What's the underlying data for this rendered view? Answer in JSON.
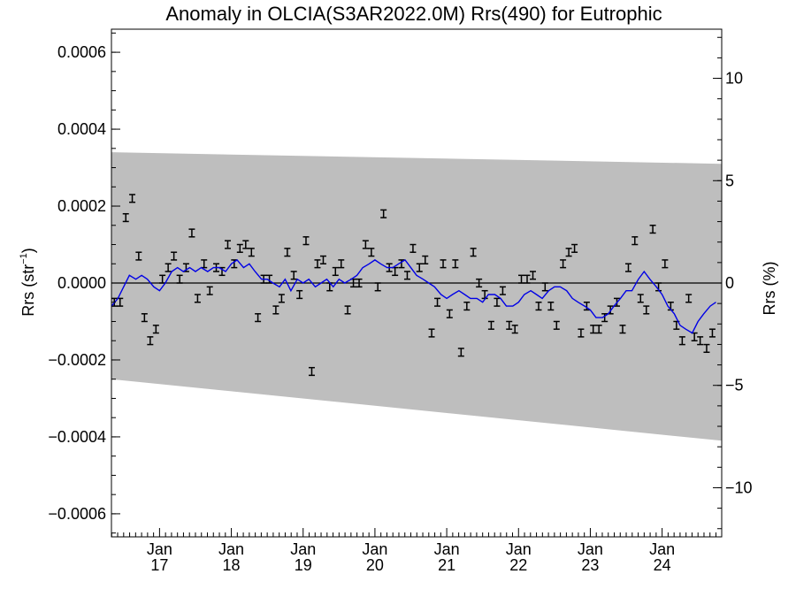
{
  "chart_data": {
    "type": "scatter",
    "title": "Anomaly in OLCIA(S3AR2022.0M) Rrs(490) for Eutrophic",
    "ylabel_left": {
      "base": "Rrs (str",
      "sup": "−1",
      "end": ")"
    },
    "ylabel_right": "Rrs (%)",
    "xlim": [
      2016.33,
      2024.83
    ],
    "ylim_left": [
      -0.00066,
      0.00066
    ],
    "ylim_right": [
      -12.4,
      12.4
    ],
    "grid": false,
    "legend": "none",
    "x_ticks": [
      {
        "x": 2017.0,
        "month": "Jan",
        "year": "17"
      },
      {
        "x": 2018.0,
        "month": "Jan",
        "year": "18"
      },
      {
        "x": 2019.0,
        "month": "Jan",
        "year": "19"
      },
      {
        "x": 2020.0,
        "month": "Jan",
        "year": "20"
      },
      {
        "x": 2021.0,
        "month": "Jan",
        "year": "21"
      },
      {
        "x": 2022.0,
        "month": "Jan",
        "year": "22"
      },
      {
        "x": 2023.0,
        "month": "Jan",
        "year": "23"
      },
      {
        "x": 2024.0,
        "month": "Jan",
        "year": "24"
      }
    ],
    "y_ticks_left": [
      {
        "v": 0.0006,
        "label": "0.0006"
      },
      {
        "v": 0.0004,
        "label": "0.0004"
      },
      {
        "v": 0.0002,
        "label": "0.0002"
      },
      {
        "v": 0.0,
        "label": "0.0000"
      },
      {
        "v": -0.0002,
        "label": "−0.0002"
      },
      {
        "v": -0.0004,
        "label": "−0.0004"
      },
      {
        "v": -0.0006,
        "label": "−0.0006"
      }
    ],
    "y_ticks_right": [
      {
        "v": 10,
        "label": "10"
      },
      {
        "v": 5,
        "label": "5"
      },
      {
        "v": 0,
        "label": "0"
      },
      {
        "v": -5,
        "label": "−5"
      },
      {
        "v": -10,
        "label": "−10"
      }
    ],
    "uncertainty_band": {
      "x": [
        2016.33,
        2024.83
      ],
      "upper": [
        0.00034,
        0.00031
      ],
      "lower": [
        -0.00025,
        -0.00041
      ],
      "color": "#bebebe"
    },
    "zero_line": 0.0,
    "anomaly_error": 1e-05,
    "anomaly_points": [
      [
        2016.37,
        -5e-05
      ],
      [
        2016.45,
        -5e-05
      ],
      [
        2016.53,
        0.00017
      ],
      [
        2016.62,
        0.00022
      ],
      [
        2016.71,
        7e-05
      ],
      [
        2016.79,
        -9e-05
      ],
      [
        2016.87,
        -0.00015
      ],
      [
        2016.95,
        -0.00012
      ],
      [
        2017.04,
        1e-05
      ],
      [
        2017.12,
        4e-05
      ],
      [
        2017.2,
        7e-05
      ],
      [
        2017.28,
        1e-05
      ],
      [
        2017.37,
        4e-05
      ],
      [
        2017.45,
        0.00013
      ],
      [
        2017.53,
        -4e-05
      ],
      [
        2017.62,
        5e-05
      ],
      [
        2017.7,
        -2e-05
      ],
      [
        2017.79,
        4e-05
      ],
      [
        2017.87,
        3e-05
      ],
      [
        2017.95,
        0.0001
      ],
      [
        2018.04,
        5e-05
      ],
      [
        2018.12,
        9e-05
      ],
      [
        2018.2,
        0.0001
      ],
      [
        2018.28,
        8e-05
      ],
      [
        2018.37,
        -9e-05
      ],
      [
        2018.45,
        1e-05
      ],
      [
        2018.53,
        1e-05
      ],
      [
        2018.62,
        -7e-05
      ],
      [
        2018.7,
        -4e-05
      ],
      [
        2018.78,
        8e-05
      ],
      [
        2018.87,
        2e-05
      ],
      [
        2018.95,
        -3e-05
      ],
      [
        2019.04,
        0.00011
      ],
      [
        2019.12,
        -0.00023
      ],
      [
        2019.2,
        5e-05
      ],
      [
        2019.28,
        6e-05
      ],
      [
        2019.37,
        -1e-05
      ],
      [
        2019.45,
        3e-05
      ],
      [
        2019.53,
        5e-05
      ],
      [
        2019.62,
        -7e-05
      ],
      [
        2019.7,
        0.0
      ],
      [
        2019.78,
        0.0
      ],
      [
        2019.87,
        0.0001
      ],
      [
        2019.95,
        8e-05
      ],
      [
        2020.04,
        -1e-05
      ],
      [
        2020.12,
        0.00018
      ],
      [
        2020.2,
        4e-05
      ],
      [
        2020.28,
        3e-05
      ],
      [
        2020.37,
        5e-05
      ],
      [
        2020.45,
        2e-05
      ],
      [
        2020.53,
        9e-05
      ],
      [
        2020.62,
        4e-05
      ],
      [
        2020.7,
        6e-05
      ],
      [
        2020.79,
        -0.00013
      ],
      [
        2020.87,
        -5e-05
      ],
      [
        2020.95,
        5e-05
      ],
      [
        2021.04,
        -8e-05
      ],
      [
        2021.12,
        5e-05
      ],
      [
        2021.2,
        -0.00018
      ],
      [
        2021.28,
        -6e-05
      ],
      [
        2021.37,
        8e-05
      ],
      [
        2021.45,
        0.0
      ],
      [
        2021.53,
        -3e-05
      ],
      [
        2021.62,
        -0.00011
      ],
      [
        2021.7,
        -5e-05
      ],
      [
        2021.78,
        -2e-05
      ],
      [
        2021.87,
        -0.00011
      ],
      [
        2021.95,
        -0.00012
      ],
      [
        2022.04,
        1e-05
      ],
      [
        2022.12,
        1e-05
      ],
      [
        2022.2,
        2e-05
      ],
      [
        2022.28,
        -6e-05
      ],
      [
        2022.37,
        -1e-05
      ],
      [
        2022.45,
        -6e-05
      ],
      [
        2022.53,
        -0.00011
      ],
      [
        2022.62,
        5e-05
      ],
      [
        2022.7,
        8e-05
      ],
      [
        2022.78,
        9e-05
      ],
      [
        2022.87,
        -0.00013
      ],
      [
        2022.95,
        -6e-05
      ],
      [
        2023.04,
        -0.00012
      ],
      [
        2023.12,
        -0.00012
      ],
      [
        2023.2,
        -9e-05
      ],
      [
        2023.28,
        -7e-05
      ],
      [
        2023.37,
        -5e-05
      ],
      [
        2023.45,
        -0.00012
      ],
      [
        2023.53,
        4e-05
      ],
      [
        2023.62,
        0.00011
      ],
      [
        2023.7,
        -4e-05
      ],
      [
        2023.78,
        -7e-05
      ],
      [
        2023.87,
        0.00014
      ],
      [
        2023.95,
        -1e-05
      ],
      [
        2024.04,
        5e-05
      ],
      [
        2024.12,
        -6e-05
      ],
      [
        2024.2,
        -0.00011
      ],
      [
        2024.28,
        -0.00015
      ],
      [
        2024.37,
        -4e-05
      ],
      [
        2024.45,
        -0.00014
      ],
      [
        2024.53,
        -0.00015
      ],
      [
        2024.62,
        -0.00017
      ],
      [
        2024.7,
        -0.00013
      ]
    ],
    "trend_line": {
      "color": "#0000e6",
      "points": [
        [
          2016.33,
          -6e-05
        ],
        [
          2016.42,
          -4e-05
        ],
        [
          2016.5,
          -1e-05
        ],
        [
          2016.58,
          2e-05
        ],
        [
          2016.67,
          1e-05
        ],
        [
          2016.75,
          2e-05
        ],
        [
          2016.83,
          1e-05
        ],
        [
          2016.92,
          -1e-05
        ],
        [
          2017.0,
          -2e-05
        ],
        [
          2017.08,
          0.0
        ],
        [
          2017.17,
          3e-05
        ],
        [
          2017.25,
          4e-05
        ],
        [
          2017.33,
          3e-05
        ],
        [
          2017.42,
          4e-05
        ],
        [
          2017.5,
          3e-05
        ],
        [
          2017.58,
          4e-05
        ],
        [
          2017.67,
          3e-05
        ],
        [
          2017.75,
          4e-05
        ],
        [
          2017.83,
          4e-05
        ],
        [
          2017.92,
          3e-05
        ],
        [
          2018.0,
          5e-05
        ],
        [
          2018.08,
          6e-05
        ],
        [
          2018.17,
          4e-05
        ],
        [
          2018.25,
          5e-05
        ],
        [
          2018.33,
          3e-05
        ],
        [
          2018.42,
          1e-05
        ],
        [
          2018.5,
          1e-05
        ],
        [
          2018.58,
          0.0
        ],
        [
          2018.67,
          -1e-05
        ],
        [
          2018.75,
          1e-05
        ],
        [
          2018.83,
          -2e-05
        ],
        [
          2018.92,
          1e-05
        ],
        [
          2019.0,
          0.0
        ],
        [
          2019.08,
          1e-05
        ],
        [
          2019.17,
          -1e-05
        ],
        [
          2019.25,
          0.0
        ],
        [
          2019.33,
          1e-05
        ],
        [
          2019.42,
          -1e-05
        ],
        [
          2019.5,
          1e-05
        ],
        [
          2019.58,
          0.0
        ],
        [
          2019.67,
          1e-05
        ],
        [
          2019.75,
          2e-05
        ],
        [
          2019.83,
          4e-05
        ],
        [
          2019.92,
          5e-05
        ],
        [
          2020.0,
          6e-05
        ],
        [
          2020.08,
          5e-05
        ],
        [
          2020.17,
          4e-05
        ],
        [
          2020.25,
          4e-05
        ],
        [
          2020.33,
          5e-05
        ],
        [
          2020.42,
          6e-05
        ],
        [
          2020.5,
          4e-05
        ],
        [
          2020.58,
          2e-05
        ],
        [
          2020.67,
          1e-05
        ],
        [
          2020.75,
          0.0
        ],
        [
          2020.83,
          -1e-05
        ],
        [
          2020.92,
          -3e-05
        ],
        [
          2021.0,
          -4e-05
        ],
        [
          2021.08,
          -3e-05
        ],
        [
          2021.17,
          -2e-05
        ],
        [
          2021.25,
          -3e-05
        ],
        [
          2021.33,
          -4e-05
        ],
        [
          2021.42,
          -4e-05
        ],
        [
          2021.5,
          -5e-05
        ],
        [
          2021.58,
          -3e-05
        ],
        [
          2021.67,
          -3e-05
        ],
        [
          2021.75,
          -4e-05
        ],
        [
          2021.83,
          -6e-05
        ],
        [
          2021.92,
          -6e-05
        ],
        [
          2022.0,
          -5e-05
        ],
        [
          2022.08,
          -3e-05
        ],
        [
          2022.17,
          -2e-05
        ],
        [
          2022.25,
          -3e-05
        ],
        [
          2022.33,
          -4e-05
        ],
        [
          2022.42,
          -2e-05
        ],
        [
          2022.5,
          -1e-05
        ],
        [
          2022.58,
          -1e-05
        ],
        [
          2022.67,
          -2e-05
        ],
        [
          2022.75,
          -4e-05
        ],
        [
          2022.83,
          -5e-05
        ],
        [
          2022.92,
          -6e-05
        ],
        [
          2023.0,
          -7e-05
        ],
        [
          2023.08,
          -9e-05
        ],
        [
          2023.17,
          -9e-05
        ],
        [
          2023.25,
          -8e-05
        ],
        [
          2023.33,
          -6e-05
        ],
        [
          2023.42,
          -4e-05
        ],
        [
          2023.5,
          -2e-05
        ],
        [
          2023.58,
          -2e-05
        ],
        [
          2023.67,
          1e-05
        ],
        [
          2023.75,
          3e-05
        ],
        [
          2023.83,
          1e-05
        ],
        [
          2023.92,
          -1e-05
        ],
        [
          2024.0,
          -3e-05
        ],
        [
          2024.08,
          -6e-05
        ],
        [
          2024.17,
          -8e-05
        ],
        [
          2024.25,
          -0.00011
        ],
        [
          2024.33,
          -0.00012
        ],
        [
          2024.42,
          -0.00013
        ],
        [
          2024.5,
          -0.0001
        ],
        [
          2024.58,
          -8e-05
        ],
        [
          2024.67,
          -6e-05
        ],
        [
          2024.75,
          -5e-05
        ]
      ]
    }
  }
}
